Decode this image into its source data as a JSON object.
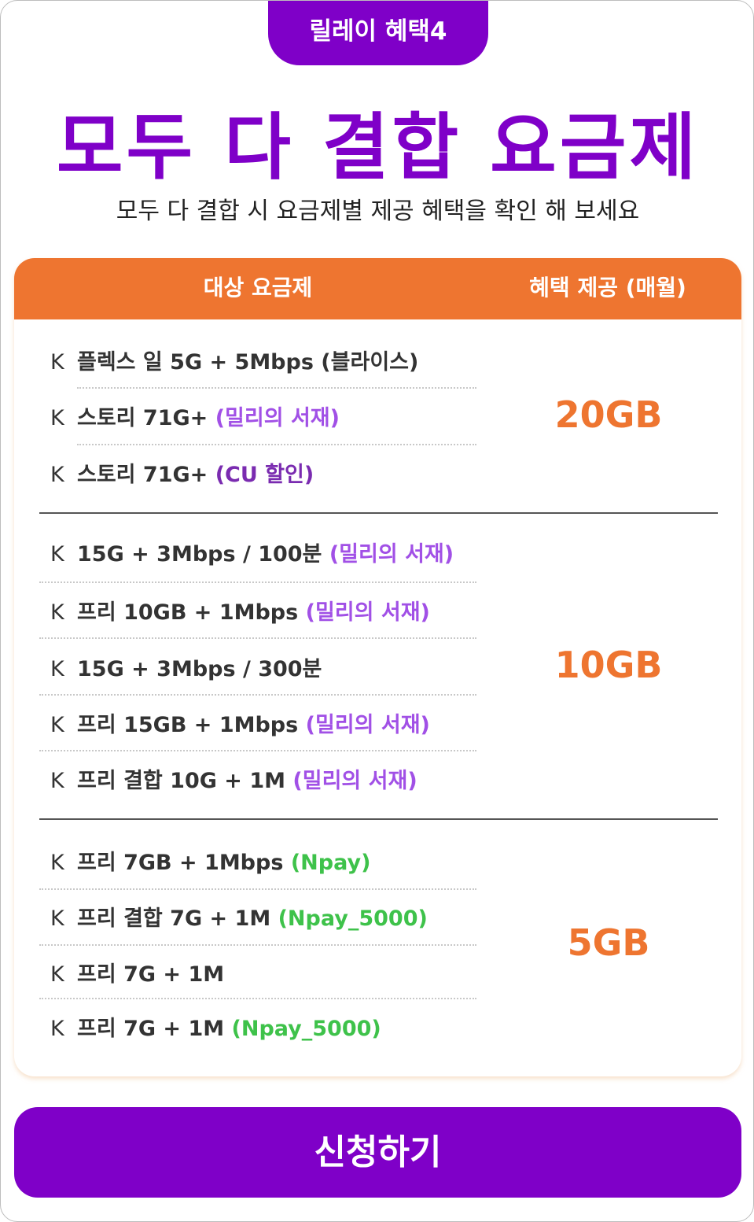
{
  "tab_label": "릴레이 혜택4",
  "title": "모두 다 결합 요금제",
  "subtitle": "모두 다 결합 시 요금제별 제공 혜택을 확인 해 보세요",
  "table": {
    "header_plan": "대상 요금제",
    "header_benefit": "혜택 제공 (매월)",
    "groups": [
      {
        "benefit": "20GB",
        "rows": [
          {
            "prefix": "K",
            "plan": "플렉스 일 5G + 5Mbps (블라이스)",
            "tag": ""
          },
          {
            "prefix": "K",
            "plan": "스토리 71G+",
            "tag": "(밀리의 서재)"
          },
          {
            "prefix": "K",
            "plan": "스토리 71G+",
            "tag": "(CU 할인)"
          }
        ]
      },
      {
        "benefit": "10GB",
        "rows": [
          {
            "prefix": "K",
            "plan": "15G + 3Mbps / 100분",
            "tag": "(밀리의 서재)"
          },
          {
            "prefix": "K",
            "plan": "프리 10GB + 1Mbps",
            "tag": "(밀리의 서재)"
          },
          {
            "prefix": "K",
            "plan": "15G + 3Mbps / 300분",
            "tag": ""
          },
          {
            "prefix": "K",
            "plan": "프리 15GB + 1Mbps",
            "tag": "(밀리의 서재)"
          },
          {
            "prefix": "K",
            "plan": "프리 결합 10G + 1M",
            "tag": "(밀리의 서재)"
          }
        ]
      },
      {
        "benefit": "5GB",
        "rows": [
          {
            "prefix": "K",
            "plan": "프리 7GB + 1Mbps",
            "tag": "(Npay)"
          },
          {
            "prefix": "K",
            "plan": "프리 결합 7G + 1M",
            "tag": "(Npay_5000)"
          },
          {
            "prefix": "K",
            "plan": "프리 7G + 1M",
            "tag": ""
          },
          {
            "prefix": "K",
            "plan": "프리 7G + 1M",
            "tag": "(Npay_5000)"
          }
        ]
      }
    ]
  },
  "apply_button": "신청하기",
  "colors": {
    "brand_purple": "#7f00c8",
    "header_orange": "#ee7530",
    "tag_purple": "#a150e6",
    "tag_green": "#3ec24a"
  }
}
